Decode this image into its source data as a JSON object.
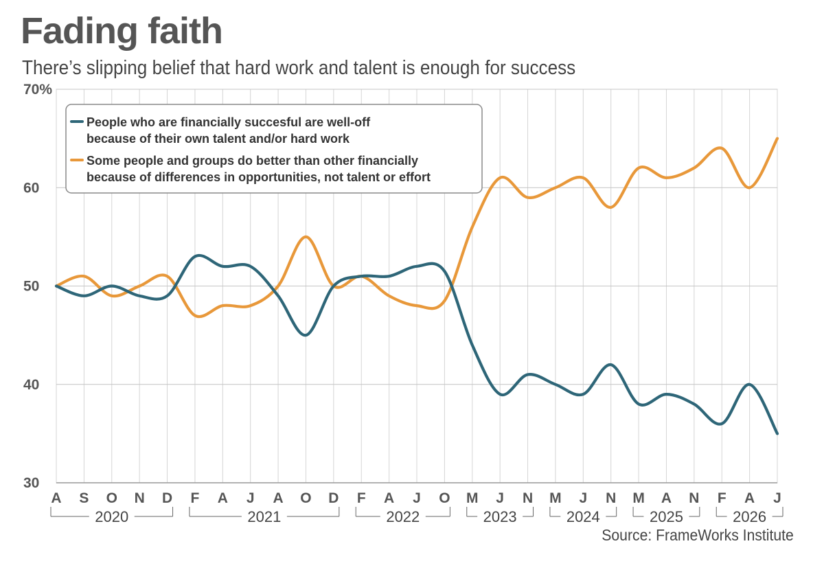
{
  "title": "Fading faith",
  "subtitle": "There’s slipping belief that hard work and talent is enough for success",
  "source": "Source: FrameWorks Institute",
  "chart_data": {
    "type": "line",
    "title": "Fading faith",
    "subtitle": "There’s slipping belief that hard work and talent is enough for success",
    "ylim": [
      30,
      70
    ],
    "yticks": [
      {
        "value": 70,
        "label": "70%"
      },
      {
        "value": 60,
        "label": "60"
      },
      {
        "value": 50,
        "label": "50"
      },
      {
        "value": 40,
        "label": "40"
      },
      {
        "value": 30,
        "label": "30"
      }
    ],
    "grid": true,
    "legend_position": "top-left",
    "categories": [
      "A",
      "S",
      "O",
      "N",
      "D",
      "F",
      "A",
      "J",
      "A",
      "O",
      "D",
      "F",
      "A",
      "J",
      "O",
      "M",
      "J",
      "N",
      "M",
      "J",
      "N",
      "M",
      "A",
      "N",
      "F",
      "A",
      "J"
    ],
    "year_groups": [
      {
        "label": "2020",
        "start": 0,
        "end": 4
      },
      {
        "label": "2021",
        "start": 5,
        "end": 10
      },
      {
        "label": "2022",
        "start": 11,
        "end": 14
      },
      {
        "label": "2023",
        "start": 15,
        "end": 17
      },
      {
        "label": "2024",
        "start": 18,
        "end": 20
      },
      {
        "label": "2025",
        "start": 21,
        "end": 23
      },
      {
        "label": "2026",
        "start": 24,
        "end": 26
      }
    ],
    "series": [
      {
        "name": "People who are financially succesful are well-off because of their own talent and/or hard work",
        "legend_lines": [
          "People who are financially succesful are well-off",
          "because of their own talent and/or hard work"
        ],
        "color": "#2e6678",
        "values": [
          50,
          49,
          50,
          49,
          49,
          53,
          52,
          52,
          49,
          45,
          50,
          51,
          51,
          52,
          51.5,
          44,
          39,
          41,
          40,
          39,
          42,
          38,
          39,
          38,
          36,
          40,
          35
        ]
      },
      {
        "name": "Some people and groups do better than other financially because of differences in opportunities, not talent or effort",
        "legend_lines": [
          "Some people and groups do better than other financially",
          "because of differences in opportunities, not talent or effort"
        ],
        "color": "#e8983a",
        "values": [
          50,
          51,
          49,
          50,
          51,
          47,
          48,
          48,
          50,
          55,
          50,
          51,
          49,
          48,
          48.5,
          56,
          61,
          59,
          60,
          61,
          58,
          62,
          61,
          62,
          64,
          60,
          65
        ]
      }
    ]
  }
}
